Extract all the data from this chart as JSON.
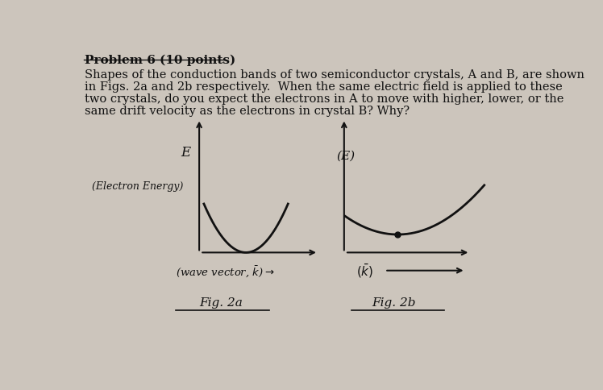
{
  "background_color": "#ccc5bc",
  "title_text": "Problem 6 (10 points)",
  "body_line1": "Shapes of the conduction bands of two semiconductor crystals, A and B, are shown",
  "body_line2": "in Figs. 2a and 2b respectively.  When the same electric field is applied to these",
  "body_line3": "two crystals, do you expect the electrons in A to move with higher, lower, or the",
  "body_line4": "same drift velocity as the electrons in crystal B? Why?",
  "text_color": "#111111",
  "curve_color": "#111111",
  "fontsize_title": 11,
  "fontsize_body": 10.5,
  "fontsize_label": 10,
  "fontsize_fig": 11
}
